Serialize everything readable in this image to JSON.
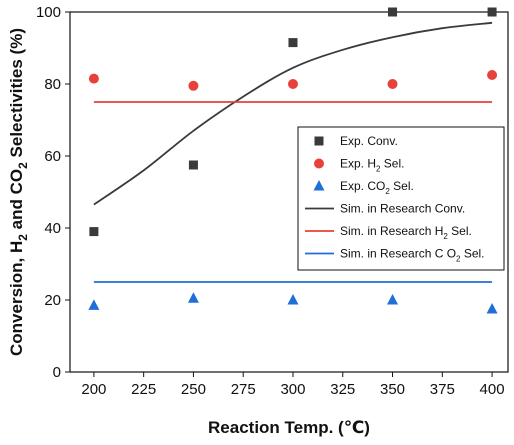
{
  "chart_data": {
    "type": "scatter",
    "title": "",
    "xlabel": "Reaction Temp. (℃)",
    "ylabel_parts": [
      {
        "t": "Conversion, H",
        "sub": false
      },
      {
        "t": "2",
        "sub": true
      },
      {
        "t": " and CO",
        "sub": false
      },
      {
        "t": "2",
        "sub": true
      },
      {
        "t": " Selectivities (%)",
        "sub": false
      }
    ],
    "xlim": [
      188,
      408
    ],
    "ylim": [
      0,
      100
    ],
    "xticks": [
      200,
      225,
      250,
      275,
      300,
      325,
      350,
      375,
      400
    ],
    "yticks": [
      0,
      20,
      40,
      60,
      80,
      100
    ],
    "grid": false,
    "legend_position": "right",
    "series": [
      {
        "name_parts": [
          {
            "t": "Exp. Conv.",
            "sub": false
          }
        ],
        "kind": "marker",
        "marker": "square",
        "color": "#3a3a3a",
        "x": [
          200,
          250,
          300,
          350,
          400
        ],
        "y": [
          39,
          57.5,
          91.5,
          100,
          100
        ]
      },
      {
        "name_parts": [
          {
            "t": "Exp. H",
            "sub": false
          },
          {
            "t": "2",
            "sub": true
          },
          {
            "t": " Sel.",
            "sub": false
          }
        ],
        "kind": "marker",
        "marker": "circle",
        "color": "#e8413c",
        "x": [
          200,
          250,
          300,
          350,
          400
        ],
        "y": [
          81.5,
          79.5,
          80,
          80,
          82.5
        ]
      },
      {
        "name_parts": [
          {
            "t": "Exp. CO",
            "sub": false
          },
          {
            "t": "2",
            "sub": true
          },
          {
            "t": " Sel.",
            "sub": false
          }
        ],
        "kind": "marker",
        "marker": "triangle",
        "color": "#1f6fd6",
        "x": [
          200,
          250,
          300,
          350,
          400
        ],
        "y": [
          18.5,
          20.5,
          20,
          20,
          17.5
        ]
      },
      {
        "name_parts": [
          {
            "t": "Sim. in Research Conv.",
            "sub": false
          }
        ],
        "kind": "line",
        "color": "#3a3a3a",
        "x": [
          200,
          225,
          250,
          275,
          300,
          325,
          350,
          375,
          400
        ],
        "y": [
          46.5,
          56,
          67,
          76.5,
          84.5,
          89.5,
          93,
          95.5,
          97
        ]
      },
      {
        "name_parts": [
          {
            "t": "Sim. in Research H",
            "sub": false
          },
          {
            "t": "2",
            "sub": true
          },
          {
            "t": " Sel.",
            "sub": false
          }
        ],
        "kind": "line",
        "color": "#e8413c",
        "x": [
          200,
          400
        ],
        "y": [
          75,
          75
        ]
      },
      {
        "name_parts": [
          {
            "t": "Sim. in Research C O",
            "sub": false
          },
          {
            "t": "2",
            "sub": true
          },
          {
            "t": " Sel.",
            "sub": false
          }
        ],
        "kind": "line",
        "color": "#1f6fd6",
        "x": [
          200,
          400
        ],
        "y": [
          25,
          25
        ]
      }
    ]
  }
}
